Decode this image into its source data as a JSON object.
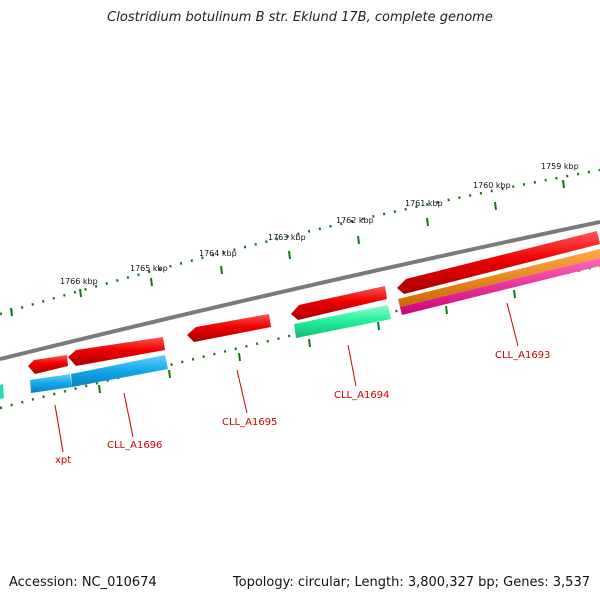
{
  "title": "Clostridium botulinum B str. Eklund 17B, complete genome",
  "accession_label": "Accession: NC_010674",
  "stats_label": "Topology: circular; Length: 3,800,327 bp; Genes: 3,537",
  "colors": {
    "backbone": "#7a7a7a",
    "ticks": "#117711",
    "gene_red": "#ee0000",
    "gene_cyan": "#11a8e8",
    "gene_green": "#22ee99",
    "gene_orange": "#ee7700",
    "gene_pink": "#ee1188",
    "label": "#cc0000"
  },
  "ruler_labels": [
    "1766 kbp",
    "1765 kbp",
    "1764 kbp",
    "1763 kbp",
    "1762 kbp",
    "1761 kbp",
    "1760 kbp",
    "1759 kbp"
  ],
  "gene_labels": [
    "xpt",
    "CLL_A1696",
    "CLL_A1695",
    "CLL_A1694",
    "CLL_A1693"
  ]
}
